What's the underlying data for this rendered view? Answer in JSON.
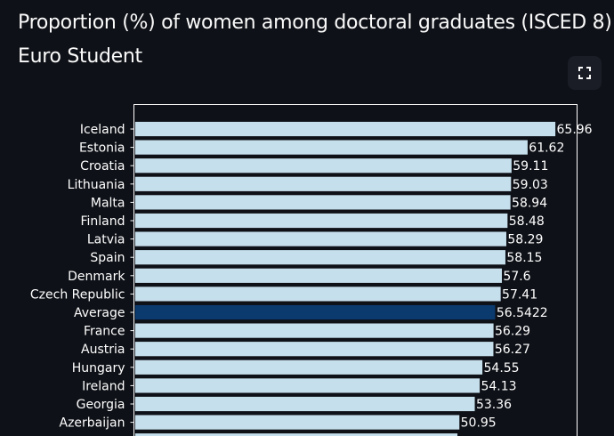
{
  "header": {
    "title": "Proportion (%) of women among doctoral graduates (ISCED 8)",
    "subtitle": "Euro Student"
  },
  "toolbar": {
    "fullscreen_icon": "expand-icon"
  },
  "colors": {
    "background": "#0e1117",
    "bar": "#c6dfec",
    "highlight_bar": "#0b3a6f",
    "text": "#ffffff",
    "axis_frame": "#ffffff"
  },
  "chart_data": {
    "type": "bar",
    "orientation": "horizontal",
    "categories": [
      "Iceland",
      "Estonia",
      "Croatia",
      "Lithuania",
      "Malta",
      "Finland",
      "Latvia",
      "Spain",
      "Denmark",
      "Czech Republic",
      "Average",
      "France",
      "Austria",
      "Hungary",
      "Ireland",
      "Georgia",
      "Azerbaijan"
    ],
    "values": [
      65.96,
      61.62,
      59.11,
      59.03,
      58.94,
      58.48,
      58.29,
      58.15,
      57.6,
      57.41,
      56.5422,
      56.29,
      56.27,
      54.55,
      54.13,
      53.36,
      50.95
    ],
    "value_labels": [
      "65.96",
      "61.62",
      "59.11",
      "59.03",
      "58.94",
      "58.48",
      "58.29",
      "58.15",
      "57.6",
      "57.41",
      "56.5422",
      "56.29",
      "56.27",
      "54.55",
      "54.13",
      "53.36",
      "50.95"
    ],
    "highlight": "Average",
    "xlim": [
      0,
      72
    ],
    "grid": false,
    "legend": "none"
  }
}
